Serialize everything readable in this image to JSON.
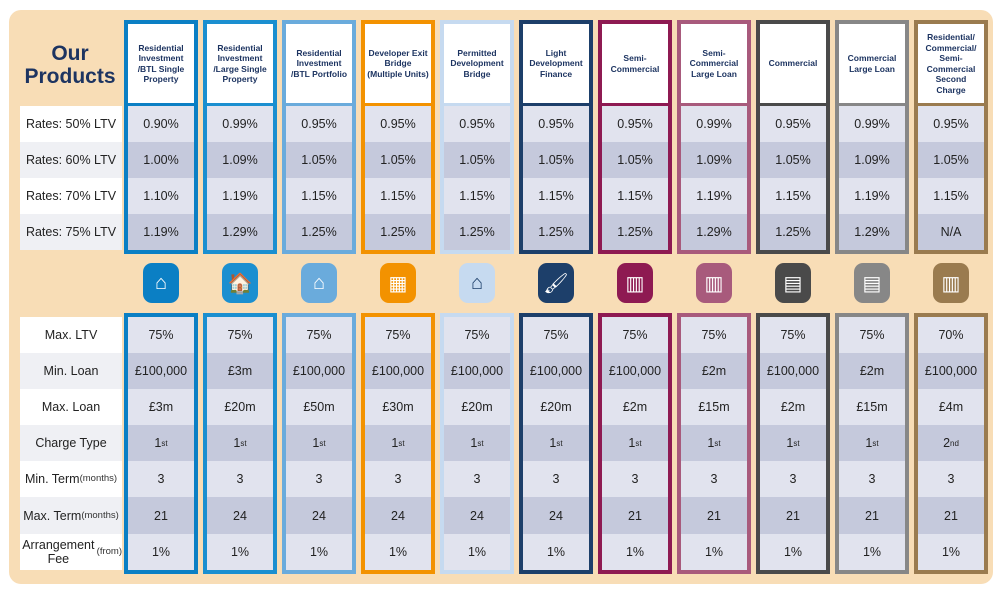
{
  "title": "Our Products",
  "rate_labels": [
    "Rates: 50% LTV",
    "Rates: 60% LTV",
    "Rates: 70% LTV",
    "Rates: 75% LTV"
  ],
  "detail_labels": [
    {
      "main": "Max. LTV",
      "sub": ""
    },
    {
      "main": "Min. Loan",
      "sub": ""
    },
    {
      "main": "Max. Loan",
      "sub": ""
    },
    {
      "main": "Charge Type",
      "sub": ""
    },
    {
      "main": "Min. Term",
      "sub": "(months)"
    },
    {
      "main": "Max. Term",
      "sub": "(months)"
    },
    {
      "main": "Arrangement Fee",
      "sub": "(from)"
    }
  ],
  "products": [
    {
      "name": "Residential Investment /BTL Single Property",
      "color": "#0b7fc4",
      "icon": "house-icon",
      "rates": [
        "0.90%",
        "1.00%",
        "1.10%",
        "1.19%"
      ],
      "max_ltv": "75%",
      "min_loan": "£100,000",
      "max_loan": "£3m",
      "charge": "1",
      "charge_sup": "st",
      "min_term": "3",
      "max_term": "21",
      "fee": "1%"
    },
    {
      "name": "Residential Investment /Large Single Property",
      "color": "#1b8fd0",
      "icon": "large-house-icon",
      "rates": [
        "0.99%",
        "1.09%",
        "1.19%",
        "1.29%"
      ],
      "max_ltv": "75%",
      "min_loan": "£3m",
      "max_loan": "£20m",
      "charge": "1",
      "charge_sup": "st",
      "min_term": "3",
      "max_term": "24",
      "fee": "1%"
    },
    {
      "name": "Residential Investment /BTL Portfolio",
      "color": "#6aabdc",
      "icon": "houses-portfolio-icon",
      "rates": [
        "0.95%",
        "1.05%",
        "1.15%",
        "1.25%"
      ],
      "max_ltv": "75%",
      "min_loan": "£100,000",
      "max_loan": "£50m",
      "charge": "1",
      "charge_sup": "st",
      "min_term": "3",
      "max_term": "24",
      "fee": "1%"
    },
    {
      "name": "Developer Exit Bridge (Multiple Units)",
      "color": "#f39200",
      "icon": "apartment-block-icon",
      "rates": [
        "0.95%",
        "1.05%",
        "1.15%",
        "1.25%"
      ],
      "max_ltv": "75%",
      "min_loan": "£100,000",
      "max_loan": "£30m",
      "charge": "1",
      "charge_sup": "st",
      "min_term": "3",
      "max_term": "24",
      "fee": "1%"
    },
    {
      "name": "Permitted Development Bridge",
      "color": "#c6daf0",
      "icon": "house-plan-icon",
      "rates": [
        "0.95%",
        "1.05%",
        "1.15%",
        "1.25%"
      ],
      "max_ltv": "75%",
      "min_loan": "£100,000",
      "max_loan": "£20m",
      "charge": "1",
      "charge_sup": "st",
      "min_term": "3",
      "max_term": "24",
      "fee": "1%"
    },
    {
      "name": "Light Development Finance",
      "color": "#1d3f6a",
      "icon": "paint-roller-icon",
      "rates": [
        "0.95%",
        "1.05%",
        "1.15%",
        "1.25%"
      ],
      "max_ltv": "75%",
      "min_loan": "£100,000",
      "max_loan": "£20m",
      "charge": "1",
      "charge_sup": "st",
      "min_term": "3",
      "max_term": "24",
      "fee": "1%"
    },
    {
      "name": "Semi-Commercial",
      "color": "#8e1a52",
      "icon": "mixed-building-icon",
      "rates": [
        "0.95%",
        "1.05%",
        "1.15%",
        "1.25%"
      ],
      "max_ltv": "75%",
      "min_loan": "£100,000",
      "max_loan": "£2m",
      "charge": "1",
      "charge_sup": "st",
      "min_term": "3",
      "max_term": "21",
      "fee": "1%"
    },
    {
      "name": "Semi-Commercial Large Loan",
      "color": "#a85a7c",
      "icon": "mixed-building-icon",
      "rates": [
        "0.99%",
        "1.09%",
        "1.19%",
        "1.29%"
      ],
      "max_ltv": "75%",
      "min_loan": "£2m",
      "max_loan": "£15m",
      "charge": "1",
      "charge_sup": "st",
      "min_term": "3",
      "max_term": "21",
      "fee": "1%"
    },
    {
      "name": "Commercial",
      "color": "#4a4a4a",
      "icon": "shop-icon",
      "rates": [
        "0.95%",
        "1.05%",
        "1.15%",
        "1.25%"
      ],
      "max_ltv": "75%",
      "min_loan": "£100,000",
      "max_loan": "£2m",
      "charge": "1",
      "charge_sup": "st",
      "min_term": "3",
      "max_term": "21",
      "fee": "1%"
    },
    {
      "name": "Commercial Large Loan",
      "color": "#878787",
      "icon": "shop-icon",
      "rates": [
        "0.99%",
        "1.09%",
        "1.19%",
        "1.29%"
      ],
      "max_ltv": "75%",
      "min_loan": "£2m",
      "max_loan": "£15m",
      "charge": "1",
      "charge_sup": "st",
      "min_term": "3",
      "max_term": "21",
      "fee": "1%"
    },
    {
      "name": "Residential/ Commercial/ Semi-Commercial Second Charge",
      "color": "#9a7b4f",
      "icon": "buildings-mix-icon",
      "rates": [
        "0.95%",
        "1.05%",
        "1.15%",
        "N/A"
      ],
      "max_ltv": "70%",
      "min_loan": "£100,000",
      "max_loan": "£4m",
      "charge": "2",
      "charge_sup": "nd",
      "min_term": "3",
      "max_term": "21",
      "fee": "1%"
    }
  ]
}
